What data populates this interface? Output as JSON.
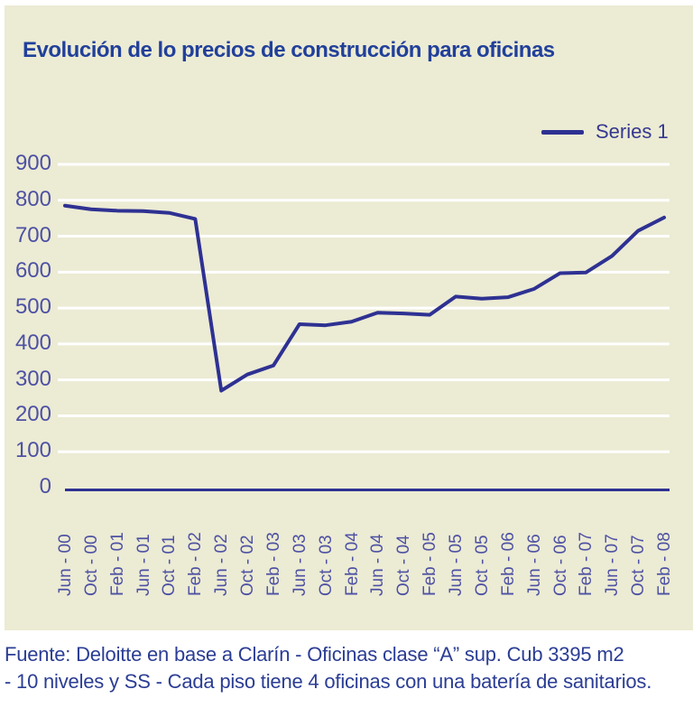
{
  "title": "Evolución de lo precios de construcción para oficinas",
  "legend": {
    "series1_label": "Series 1"
  },
  "footer": {
    "line1": "Fuente: Deloitte en base a Clarín - Oficinas clase “A” sup. Cub 3395 m2",
    "line2": "- 10 niveles y SS - Cada piso tiene 4 oficinas con una batería de sanitarios."
  },
  "colors": {
    "panel_bg": "#ecebd4",
    "series_line": "#2e3192",
    "title_text": "#21409a",
    "axis_text": "#4d51a3",
    "footer_text": "#2b3d94",
    "gridline": "#ffffff",
    "baseline": "#2e3192"
  },
  "chart_data": {
    "type": "line",
    "title": "Evolución de lo precios de construcción para oficinas",
    "legend_entries": [
      "Series 1"
    ],
    "legend_position": "top-right",
    "grid": true,
    "xlabel": "",
    "ylabel": "",
    "ylim": [
      0,
      900
    ],
    "ytick_interval": 100,
    "yticks": [
      0,
      100,
      200,
      300,
      400,
      500,
      600,
      700,
      800,
      900
    ],
    "categories": [
      "Jun - 00",
      "Oct - 00",
      "Feb - 01",
      "Jun - 01",
      "Oct - 01",
      "Feb - 02",
      "Jun - 02",
      "Oct - 02",
      "Feb - 03",
      "Jun - 03",
      "Oct - 03",
      "Feb - 04",
      "Jun - 04",
      "Oct - 04",
      "Feb - 05",
      "Jun - 05",
      "Oct - 05",
      "Feb - 06",
      "Jun - 06",
      "Oct - 06",
      "Feb - 07",
      "Jun - 07",
      "Oct - 07",
      "Feb - 08"
    ],
    "series": [
      {
        "name": "Series 1",
        "values": [
          785,
          775,
          771,
          770,
          765,
          748,
          270,
          315,
          340,
          455,
          452,
          462,
          487,
          485,
          481,
          532,
          526,
          530,
          553,
          597,
          599,
          645,
          715,
          752
        ]
      }
    ]
  }
}
